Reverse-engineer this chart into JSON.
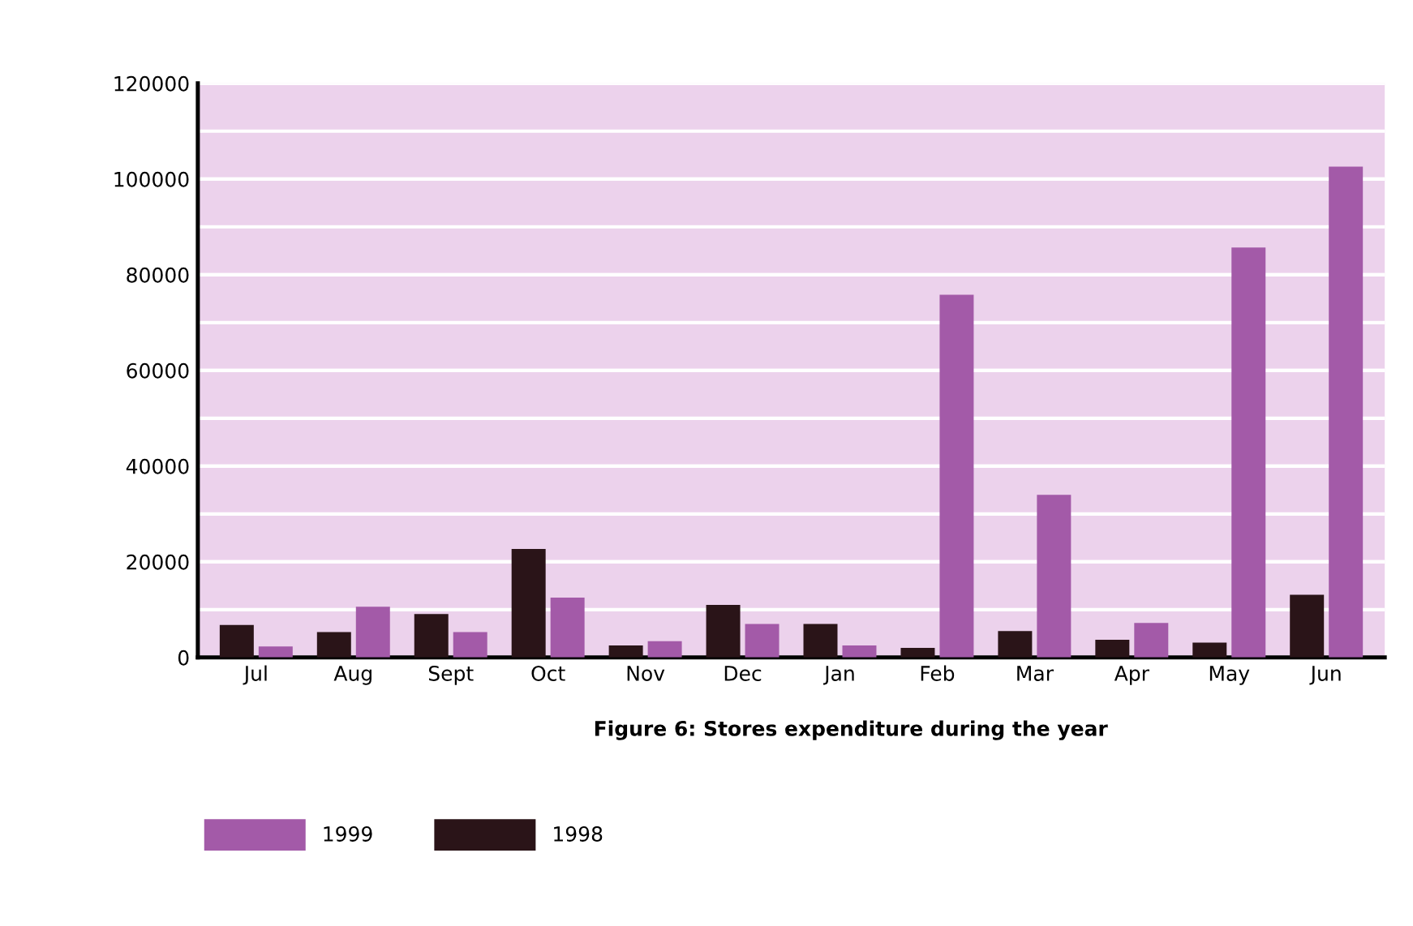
{
  "chart_data": {
    "type": "bar",
    "title": "Figure 6: Stores expenditure during the year",
    "categories": [
      "Jul",
      "Aug",
      "Sept",
      "Oct",
      "Nov",
      "Dec",
      "Jan",
      "Feb",
      "Mar",
      "Apr",
      "May",
      "Jun"
    ],
    "series": [
      {
        "name": "1998",
        "color": "#2a1418",
        "values": [
          6800,
          5300,
          9100,
          22700,
          2500,
          11000,
          7000,
          2000,
          5500,
          3700,
          3100,
          13100
        ]
      },
      {
        "name": "1999",
        "color": "#a35aa8",
        "values": [
          2300,
          10600,
          5300,
          12500,
          3400,
          7000,
          2500,
          75800,
          34000,
          7200,
          85700,
          102600
        ]
      }
    ],
    "ylim": [
      0,
      120000
    ],
    "yticks": [
      0,
      20000,
      40000,
      60000,
      80000,
      100000,
      120000
    ],
    "grid": "y",
    "legend": "bottom"
  }
}
